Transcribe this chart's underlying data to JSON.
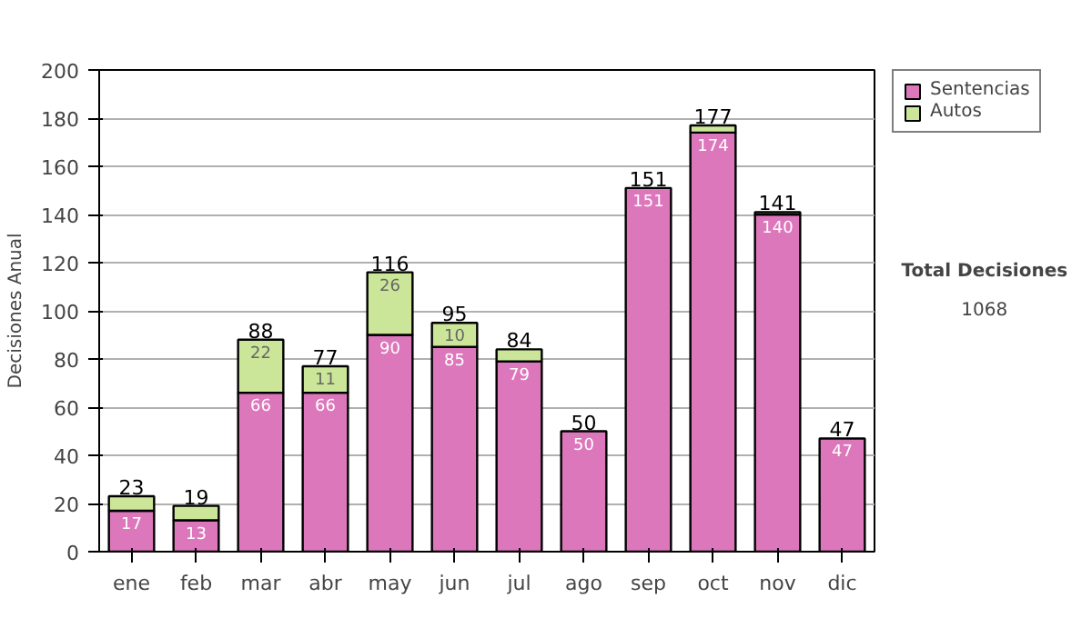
{
  "chart_data": {
    "type": "bar",
    "stacked": true,
    "ylabel": "Decisiones Anual",
    "categories": [
      "ene",
      "feb",
      "mar",
      "abr",
      "may",
      "jun",
      "jul",
      "ago",
      "sep",
      "oct",
      "nov",
      "dic"
    ],
    "series": [
      {
        "name": "Sentencias",
        "color": "#dd77bb",
        "values": [
          17,
          13,
          66,
          66,
          90,
          85,
          79,
          50,
          151,
          174,
          140,
          47
        ],
        "value_labels": [
          "17",
          "13",
          "66",
          "66",
          "90",
          "85",
          "79",
          "50",
          "151",
          "174",
          "140",
          "47"
        ]
      },
      {
        "name": "Autos",
        "color": "#cce699",
        "values": [
          6,
          6,
          22,
          11,
          26,
          10,
          5,
          null,
          null,
          3,
          1,
          null
        ],
        "value_labels": [
          null,
          null,
          "22",
          "11",
          "26",
          "10",
          null,
          null,
          null,
          null,
          null,
          null
        ]
      }
    ],
    "totals": [
      "23",
      "19",
      "88",
      "77",
      "116",
      "95",
      "84",
      "50",
      "151",
      "177",
      "141",
      "47"
    ],
    "ylim": [
      0,
      200
    ],
    "yticks": [
      0,
      20,
      40,
      60,
      80,
      100,
      120,
      140,
      160,
      180,
      200
    ],
    "grid": "y",
    "legend": "right",
    "annotations": [
      "Total Decisiones",
      "1068"
    ]
  }
}
